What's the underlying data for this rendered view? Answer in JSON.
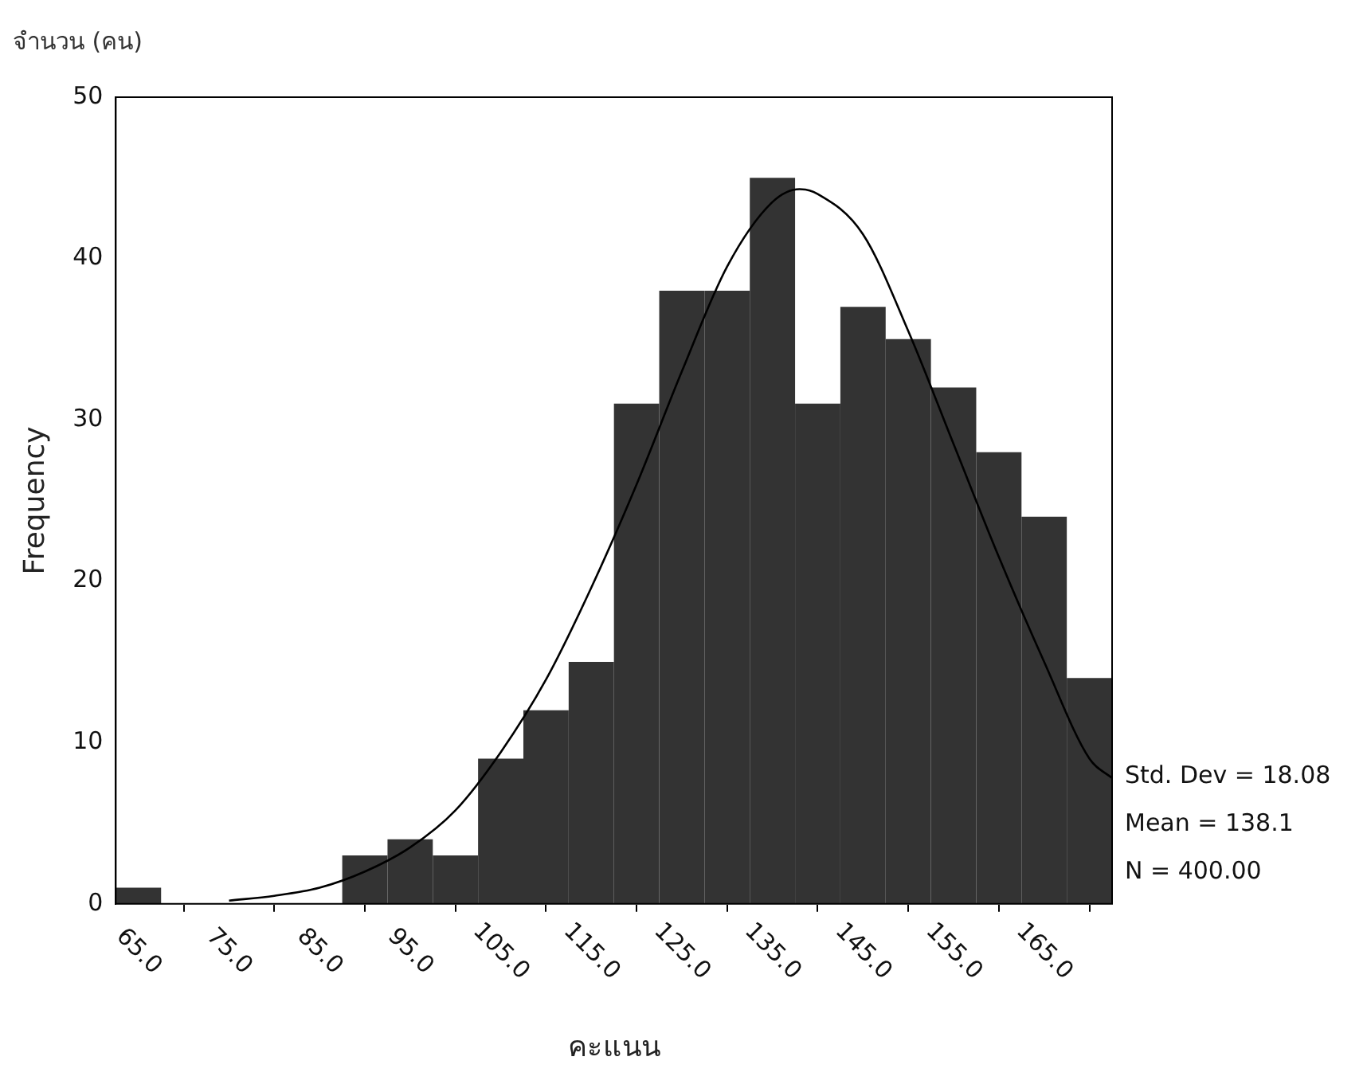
{
  "chart_data": {
    "type": "histogram",
    "title": "จำนวน (คน)",
    "xlabel": "คะแนน",
    "ylabel": "Frequency",
    "bins": [
      62.5,
      67.5,
      72.5,
      77.5,
      82.5,
      87.5,
      92.5,
      97.5,
      102.5,
      107.5,
      112.5,
      117.5,
      122.5,
      127.5,
      132.5,
      137.5,
      142.5,
      147.5,
      152.5,
      157.5,
      162.5,
      167.5,
      172.5
    ],
    "values": [
      1,
      0,
      0,
      0,
      0,
      3,
      4,
      3,
      9,
      12,
      15,
      31,
      38,
      38,
      45,
      31,
      37,
      35,
      32,
      28,
      24,
      14
    ],
    "color": "#333333",
    "series": [
      {
        "type": "line",
        "color": "#000000",
        "x": [
          75,
          80,
          85,
          90,
          95,
          100,
          105,
          110,
          115,
          120,
          125,
          130,
          135,
          138,
          140,
          145,
          150,
          155,
          160,
          165,
          170,
          172.5
        ],
        "values": [
          0.2,
          0.5,
          1.0,
          2.0,
          3.5,
          5.8,
          9.4,
          13.9,
          19.6,
          26,
          33,
          39.5,
          43.5,
          44.3,
          44,
          41.5,
          35.5,
          28.5,
          21.5,
          15,
          9,
          7.8
        ]
      }
    ],
    "xlim": [
      62.5,
      172.5
    ],
    "xticks": [
      {
        "value": 65,
        "label": "65.0"
      },
      {
        "value": 75,
        "label": "75.0"
      },
      {
        "value": 85,
        "label": "85.0"
      },
      {
        "value": 95,
        "label": "95.0"
      },
      {
        "value": 105,
        "label": "105.0"
      },
      {
        "value": 115,
        "label": "115.0"
      },
      {
        "value": 125,
        "label": "125.0"
      },
      {
        "value": 135,
        "label": "135.0"
      },
      {
        "value": 145,
        "label": "145.0"
      },
      {
        "value": 155,
        "label": "155.0"
      },
      {
        "value": 165,
        "label": "165.0"
      }
    ],
    "ylim": [
      0,
      50
    ],
    "yticks": [
      0,
      10,
      20,
      30,
      40,
      50
    ],
    "grid": false,
    "legend": false,
    "annotations": [
      "Std. Dev = 18.08",
      "Mean = 138.1",
      "N = 400.00"
    ]
  }
}
